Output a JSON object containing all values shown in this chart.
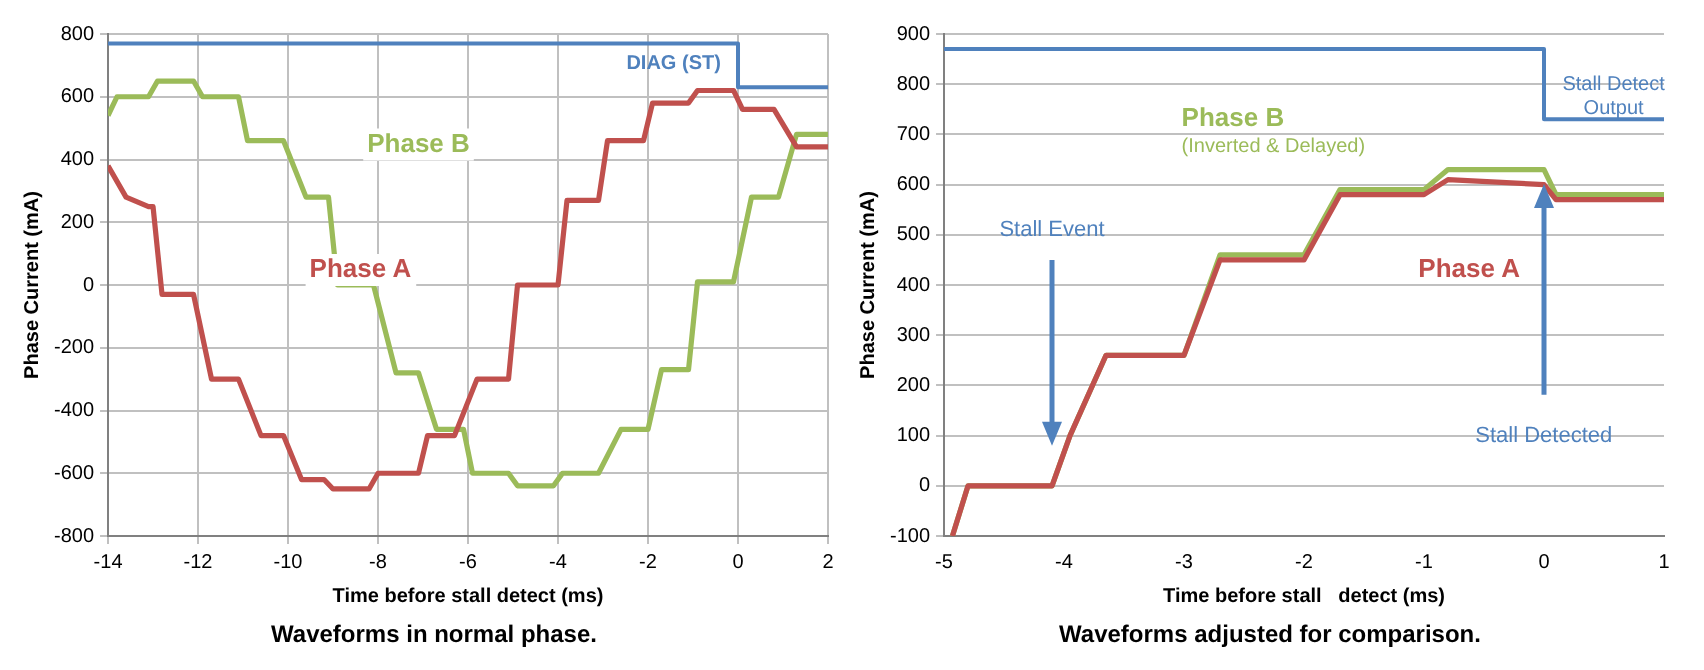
{
  "chart_data": [
    {
      "type": "line",
      "title": "Waveforms in normal phase.",
      "xlabel": "Time before stall detect (ms)",
      "ylabel": "Phase Current (mA)",
      "xlim": [
        -14,
        2
      ],
      "xticks": [
        -14,
        -12,
        -10,
        -8,
        -6,
        -4,
        -2,
        0,
        2
      ],
      "ylim": [
        -800,
        800
      ],
      "yticks": [
        -800,
        -600,
        -400,
        -200,
        0,
        200,
        400,
        600,
        800
      ],
      "grid": true,
      "series": [
        {
          "name": "Phase A",
          "color": "#c0504d",
          "x": [
            -14,
            -13.6,
            -13.1,
            -13,
            -12.8,
            -12.1,
            -11.7,
            -11.1,
            -10.6,
            -10.1,
            -9.7,
            -9.2,
            -9,
            -8.2,
            -8,
            -7.1,
            -6.9,
            -6.3,
            -5.8,
            -5.1,
            -4.9,
            -4,
            -3.8,
            -3.1,
            -2.9,
            -2.1,
            -1.9,
            -1.1,
            -0.9,
            -0.1,
            0.1,
            0.8,
            1.3,
            2
          ],
          "values": [
            380,
            280,
            250,
            250,
            -30,
            -30,
            -300,
            -300,
            -480,
            -480,
            -620,
            -620,
            -650,
            -650,
            -600,
            -600,
            -480,
            -480,
            -300,
            -300,
            0,
            0,
            270,
            270,
            460,
            460,
            580,
            580,
            620,
            620,
            560,
            560,
            440,
            440
          ]
        },
        {
          "name": "Phase B",
          "color": "#9bbb59",
          "x": [
            -14,
            -13.8,
            -13.1,
            -12.9,
            -12.1,
            -11.9,
            -11.1,
            -10.9,
            -10.1,
            -9.6,
            -9.1,
            -8.9,
            -8.1,
            -7.6,
            -7.1,
            -6.7,
            -6.1,
            -5.9,
            -5.1,
            -4.9,
            -4.1,
            -3.9,
            -3.1,
            -2.6,
            -2,
            -1.7,
            -1.1,
            -0.9,
            -0.1,
            0.3,
            0.9,
            1.3,
            2
          ],
          "values": [
            540,
            600,
            600,
            650,
            650,
            600,
            600,
            460,
            460,
            280,
            280,
            0,
            0,
            -280,
            -280,
            -460,
            -460,
            -600,
            -600,
            -640,
            -640,
            -600,
            -600,
            -460,
            -460,
            -270,
            -270,
            10,
            10,
            280,
            280,
            480,
            480
          ]
        },
        {
          "name": "DIAG (ST)",
          "color": "#4f81bd",
          "x": [
            -14,
            0,
            0,
            2
          ],
          "values": [
            770,
            770,
            630,
            630
          ]
        }
      ]
    },
    {
      "type": "line",
      "title": "Waveforms adjusted for comparison.",
      "xlabel": "Time before stall   detect (ms)",
      "ylabel": "Phase Current (mA)",
      "xlim": [
        -5,
        1
      ],
      "xticks": [
        -5,
        -4,
        -3,
        -2,
        -1,
        0,
        1
      ],
      "ylim": [
        -100,
        900
      ],
      "yticks": [
        -100,
        0,
        100,
        200,
        300,
        400,
        500,
        600,
        700,
        800,
        900
      ],
      "grid": "y",
      "annotations": [
        "(Inverted & Delayed)",
        "Stall Event",
        "Stall Detected"
      ],
      "series": [
        {
          "name": "Phase A",
          "color": "#c0504d",
          "x": [
            -4.93,
            -4.8,
            -4.1,
            -3.95,
            -3.65,
            -3.0,
            -2.7,
            -2.0,
            -1.7,
            -1.0,
            -0.8,
            0,
            0.1,
            1
          ],
          "values": [
            -100,
            0,
            0,
            100,
            260,
            260,
            450,
            450,
            580,
            580,
            610,
            600,
            570,
            570
          ]
        },
        {
          "name": "Phase B",
          "color": "#9bbb59",
          "x": [
            -4.93,
            -4.8,
            -4.1,
            -3.95,
            -3.65,
            -3.0,
            -2.7,
            -2.0,
            -1.7,
            -1.0,
            -0.8,
            0,
            0.1,
            1
          ],
          "values": [
            -100,
            0,
            0,
            100,
            260,
            260,
            460,
            460,
            590,
            590,
            630,
            630,
            580,
            580
          ]
        },
        {
          "name": "Stall Detect Output",
          "color": "#4f81bd",
          "x": [
            -5,
            0,
            0,
            1
          ],
          "values": [
            870,
            870,
            730,
            730
          ]
        }
      ]
    }
  ]
}
